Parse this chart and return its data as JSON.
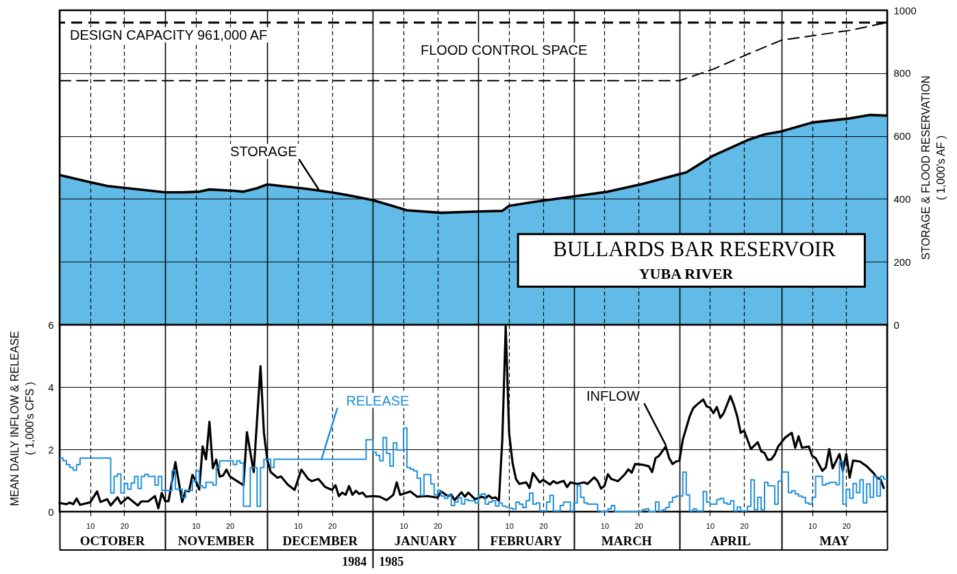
{
  "chart_data": [
    {
      "type": "line",
      "title": "BULLARDS BAR RESERVOIR",
      "subtitle": "YUBA RIVER",
      "ylabel": "STORAGE & FLOOD RESERVATION\n( 1,000's AF )",
      "x": [
        "1984-10-01",
        "1984-10-10",
        "1984-10-15",
        "1984-10-20",
        "1984-10-26",
        "1984-11-01",
        "1984-11-06",
        "1984-11-11",
        "1984-11-14",
        "1984-11-21",
        "1984-11-24",
        "1984-11-28",
        "1984-12-01",
        "1984-12-05",
        "1984-12-11",
        "1984-12-16",
        "1984-12-21",
        "1984-12-26",
        "1985-01-01",
        "1985-01-06",
        "1985-01-11",
        "1985-01-21",
        "1985-02-01",
        "1985-02-08",
        "1985-02-10",
        "1985-02-17",
        "1985-03-01",
        "1985-03-11",
        "1985-03-21",
        "1985-04-01",
        "1985-04-03",
        "1985-04-11",
        "1985-04-21",
        "1985-04-26",
        "1985-05-01",
        "1985-05-10",
        "1985-05-21",
        "1985-05-27",
        "1985-06-01"
      ],
      "series": [
        {
          "name": "STORAGE",
          "type": "area",
          "color": "#62bbe7",
          "values": [
            476,
            453,
            441,
            435,
            428,
            421,
            421,
            423,
            430,
            426,
            423,
            434,
            446,
            441,
            434,
            427,
            419,
            409,
            396,
            380,
            364,
            356,
            360,
            362,
            378,
            390,
            408,
            423,
            447,
            479,
            484,
            538,
            587,
            605,
            615,
            643,
            656,
            667,
            665
          ]
        },
        {
          "color": "#000000",
          "line_style": "dashed",
          "x": [
            "1984-10-01",
            "1985-04-01",
            "1985-04-11",
            "1985-04-21",
            "1985-05-01",
            "1985-05-10",
            "1985-05-21",
            "1985-06-01"
          ],
          "values": [
            776,
            776,
            813,
            860,
            905,
            919,
            936,
            961
          ]
        }
      ],
      "xlim": [
        "1984-10-01",
        "1985-06-01"
      ],
      "xticks": [
        {
          "value": "1984-10-01",
          "label": null
        },
        {
          "value": "1984-10-10",
          "label": null
        },
        {
          "value": "1984-10-20",
          "label": null
        },
        {
          "value": "1984-11-01",
          "label": null
        },
        {
          "value": "1984-11-10",
          "label": null
        },
        {
          "value": "1984-11-20",
          "label": null
        },
        {
          "value": "1984-12-01",
          "label": null
        },
        {
          "value": "1984-12-10",
          "label": null
        },
        {
          "value": "1984-12-20",
          "label": null
        },
        {
          "value": "1985-01-01",
          "label": null
        },
        {
          "value": "1985-01-10",
          "label": null
        },
        {
          "value": "1985-01-20",
          "label": null
        },
        {
          "value": "1985-02-01",
          "label": null
        },
        {
          "value": "1985-02-10",
          "label": null
        },
        {
          "value": "1985-02-20",
          "label": null
        },
        {
          "value": "1985-03-01",
          "label": null
        },
        {
          "value": "1985-03-10",
          "label": null
        },
        {
          "value": "1985-03-20",
          "label": null
        },
        {
          "value": "1985-04-01",
          "label": null
        },
        {
          "value": "1985-04-10",
          "label": null
        },
        {
          "value": "1985-04-20",
          "label": null
        },
        {
          "value": "1985-05-01",
          "label": null
        },
        {
          "value": "1985-05-10",
          "label": null
        },
        {
          "value": "1985-05-20",
          "label": null
        },
        {
          "value": "1985-06-01",
          "label": null
        }
      ],
      "ylim": [
        0,
        1000
      ],
      "yticks": [
        0,
        200,
        400,
        600,
        800,
        1000
      ],
      "grid": true,
      "tick_labels": "y",
      "ref_lines": [
        {
          "axis": "y",
          "value": 961,
          "label": "DESIGN CAPACITY 961,000 AF",
          "color": "#000000",
          "line_style": "dashed"
        }
      ],
      "annotations": [
        "FLOOD CONTROL SPACE"
      ]
    },
    {
      "type": "line",
      "ylabel": "MEAN DAILY INFLOW & RELEASE\n( 1,000's CFS )",
      "series": [
        {
          "name": "INFLOW",
          "color": "#000000",
          "x": [
            "1984-10-01",
            "1984-10-03",
            "1984-10-04",
            "1984-10-05",
            "1984-10-06",
            "1984-10-07",
            "1984-10-10",
            "1984-10-12",
            "1984-10-13",
            "1984-10-15",
            "1984-10-16",
            "1984-10-18",
            "1984-10-19",
            "1984-10-21",
            "1984-10-24",
            "1984-10-25",
            "1984-10-27",
            "1984-10-29",
            "1984-10-30",
            "1984-10-31",
            "1984-11-01",
            "1984-11-02",
            "1984-11-04",
            "1984-11-06",
            "1984-11-07",
            "1984-11-08",
            "1984-11-09",
            "1984-11-10",
            "1984-11-11",
            "1984-11-12",
            "1984-11-13",
            "1984-11-14",
            "1984-11-15",
            "1984-11-16",
            "1984-11-17",
            "1984-11-18",
            "1984-11-19",
            "1984-11-20",
            "1984-11-24",
            "1984-11-25",
            "1984-11-27",
            "1984-11-29",
            "1984-11-30",
            "1984-12-01",
            "1984-12-02",
            "1984-12-04",
            "1984-12-05",
            "1984-12-07",
            "1984-12-09",
            "1984-12-11",
            "1984-12-13",
            "1984-12-14",
            "1984-12-16",
            "1984-12-18",
            "1984-12-20",
            "1984-12-21",
            "1984-12-22",
            "1984-12-23",
            "1984-12-24",
            "1984-12-25",
            "1984-12-26",
            "1984-12-27",
            "1984-12-28",
            "1984-12-29",
            "1984-12-30",
            "1985-01-01",
            "1985-01-03",
            "1985-01-05",
            "1985-01-07",
            "1985-01-08",
            "1985-01-09",
            "1985-01-12",
            "1985-01-14",
            "1985-01-17",
            "1985-01-20",
            "1985-01-21",
            "1985-01-23",
            "1985-01-24",
            "1985-01-25",
            "1985-01-27",
            "1985-01-28",
            "1985-01-29",
            "1985-01-31",
            "1985-02-02",
            "1985-02-03",
            "1985-02-04",
            "1985-02-05",
            "1985-02-06",
            "1985-02-07",
            "1985-02-08",
            "1985-02-09",
            "1985-02-10",
            "1985-02-11",
            "1985-02-12",
            "1985-02-13",
            "1985-02-15",
            "1985-02-16",
            "1985-02-17",
            "1985-02-19",
            "1985-02-20",
            "1985-02-22",
            "1985-02-23",
            "1985-02-24",
            "1985-02-26",
            "1985-02-27",
            "1985-02-28",
            "1985-03-02",
            "1985-03-04",
            "1985-03-05",
            "1985-03-07",
            "1985-03-08",
            "1985-03-09",
            "1985-03-10",
            "1985-03-11",
            "1985-03-12",
            "1985-03-14",
            "1985-03-16",
            "1985-03-17",
            "1985-03-18",
            "1985-03-19",
            "1985-03-21",
            "1985-03-23",
            "1985-03-24",
            "1985-03-25",
            "1985-03-26",
            "1985-03-27",
            "1985-03-28",
            "1985-03-29",
            "1985-03-30",
            "1985-03-31",
            "1985-04-01",
            "1985-04-02",
            "1985-04-04",
            "1985-04-05",
            "1985-04-06",
            "1985-04-08",
            "1985-04-09",
            "1985-04-10",
            "1985-04-11",
            "1985-04-12",
            "1985-04-13",
            "1985-04-14",
            "1985-04-16",
            "1985-04-17",
            "1985-04-18",
            "1985-04-19",
            "1985-04-20",
            "1985-04-22",
            "1985-04-24",
            "1985-04-25",
            "1985-04-26",
            "1985-04-27",
            "1985-04-28",
            "1985-04-29",
            "1985-04-30",
            "1985-05-01",
            "1985-05-02",
            "1985-05-04",
            "1985-05-05",
            "1985-05-06",
            "1985-05-07",
            "1985-05-09",
            "1985-05-10",
            "1985-05-11",
            "1985-05-13",
            "1985-05-14",
            "1985-05-15",
            "1985-05-16",
            "1985-05-18",
            "1985-05-19",
            "1985-05-20",
            "1985-05-21",
            "1985-05-22",
            "1985-05-24",
            "1985-05-26",
            "1985-05-28",
            "1985-05-29",
            "1985-05-30",
            "1985-05-31"
          ],
          "values": [
            0.28,
            0.24,
            0.29,
            0.24,
            0.42,
            0.22,
            0.3,
            0.65,
            0.31,
            0.4,
            0.2,
            0.46,
            0.26,
            0.46,
            0.2,
            0.33,
            0.33,
            0.5,
            0.11,
            0.6,
            0.34,
            0.34,
            1.59,
            0.31,
            0.68,
            0.65,
            1.18,
            0.98,
            0.71,
            2.09,
            1.68,
            2.88,
            1.39,
            1.67,
            1.13,
            1.16,
            1.35,
            1.13,
            0.85,
            2.55,
            1.27,
            4.67,
            2.53,
            1.65,
            1.27,
            1.09,
            1.13,
            0.87,
            0.7,
            1.35,
            1.05,
            0.98,
            1.05,
            0.79,
            0.7,
            0.85,
            0.5,
            0.61,
            0.54,
            0.82,
            0.54,
            0.67,
            0.57,
            0.61,
            0.48,
            0.5,
            0.48,
            0.37,
            0.54,
            0.94,
            0.54,
            0.65,
            0.48,
            0.5,
            0.45,
            0.65,
            0.5,
            0.55,
            0.37,
            0.62,
            0.48,
            0.61,
            0.4,
            0.48,
            0.43,
            0.52,
            0.43,
            0.46,
            0.35,
            2.31,
            5.95,
            2.53,
            1.57,
            1.05,
            0.89,
            0.94,
            0.76,
            1.24,
            0.94,
            1.02,
            0.87,
            0.98,
            0.91,
            0.99,
            0.79,
            0.94,
            0.89,
            0.94,
            0.89,
            1.1,
            0.98,
            0.74,
            0.83,
            1.2,
            1.05,
            0.98,
            1.2,
            1.36,
            1.25,
            1.53,
            1.51,
            1.46,
            1.27,
            1.72,
            1.79,
            1.94,
            2.09,
            1.72,
            1.53,
            1.61,
            1.64,
            2.31,
            3.05,
            3.31,
            3.42,
            3.6,
            3.38,
            3.34,
            3.16,
            3.36,
            3.01,
            3.16,
            3.71,
            3.42,
            3.05,
            2.53,
            2.6,
            2.01,
            2.23,
            1.94,
            1.88,
            1.66,
            1.68,
            1.83,
            2.09,
            2.23,
            2.37,
            2.53,
            2.05,
            2.42,
            2.05,
            2.09,
            1.79,
            1.72,
            1.31,
            1.42,
            2.01,
            1.39,
            1.85,
            1.31,
            1.85,
            1.09,
            1.64,
            1.61,
            1.46,
            1.24,
            1.09,
            1.05,
            0.76
          ]
        },
        {
          "name": "RELEASE",
          "type": "step",
          "color": "#1e8fdc",
          "x": [
            "1984-10-01",
            "1984-10-02",
            "1984-10-03",
            "1984-10-04",
            "1984-10-05",
            "1984-10-06",
            "1984-10-07",
            "1984-10-16",
            "1984-10-17",
            "1984-10-18",
            "1984-10-19",
            "1984-10-20",
            "1984-10-21",
            "1984-10-22",
            "1984-10-23",
            "1984-10-24",
            "1984-10-25",
            "1984-10-26",
            "1984-10-27",
            "1984-10-29",
            "1984-10-30",
            "1984-10-31",
            "1984-11-03",
            "1984-11-04",
            "1984-11-06",
            "1984-11-07",
            "1984-11-09",
            "1984-11-10",
            "1984-11-11",
            "1984-11-12",
            "1984-11-13",
            "1984-11-15",
            "1984-11-16",
            "1984-11-17",
            "1984-11-21",
            "1984-11-22",
            "1984-11-23",
            "1984-11-24",
            "1984-11-26",
            "1984-11-28",
            "1984-11-29",
            "1984-11-30",
            "1984-12-02",
            "1984-12-03",
            "1984-12-30",
            "1985-01-01",
            "1985-01-02",
            "1985-01-03",
            "1985-01-04",
            "1985-01-05",
            "1985-01-06",
            "1985-01-07",
            "1985-01-08",
            "1985-01-10",
            "1985-01-11",
            "1985-01-12",
            "1985-01-13",
            "1985-01-14",
            "1985-01-15",
            "1985-01-16",
            "1985-01-18",
            "1985-01-19",
            "1985-01-20",
            "1985-01-21",
            "1985-01-22",
            "1985-01-23",
            "1985-01-24",
            "1985-01-25",
            "1985-01-26",
            "1985-01-27",
            "1985-01-28",
            "1985-01-29",
            "1985-01-31",
            "1985-02-01",
            "1985-02-02",
            "1985-02-03",
            "1985-02-04",
            "1985-02-05",
            "1985-02-06",
            "1985-02-07",
            "1985-02-08",
            "1985-02-09",
            "1985-02-10",
            "1985-02-11",
            "1985-02-12",
            "1985-02-13",
            "1985-02-14",
            "1985-02-15",
            "1985-02-16",
            "1985-02-17",
            "1985-02-18",
            "1985-02-19",
            "1985-02-21",
            "1985-02-22",
            "1985-02-23",
            "1985-02-25",
            "1985-02-26",
            "1985-02-28",
            "1985-03-01",
            "1985-03-02",
            "1985-03-03",
            "1985-03-04",
            "1985-03-05",
            "1985-03-08",
            "1985-03-09",
            "1985-03-11",
            "1985-03-12",
            "1985-03-13",
            "1985-03-21",
            "1985-03-22",
            "1985-03-23",
            "1985-03-25",
            "1985-03-26",
            "1985-03-27",
            "1985-03-28",
            "1985-03-29",
            "1985-03-30",
            "1985-03-31",
            "1985-04-02",
            "1985-04-03",
            "1985-04-04",
            "1985-04-05",
            "1985-04-06",
            "1985-04-08",
            "1985-04-09",
            "1985-04-10",
            "1985-04-12",
            "1985-04-13",
            "1985-04-14",
            "1985-04-15",
            "1985-04-16",
            "1985-04-17",
            "1985-04-18",
            "1985-04-19",
            "1985-04-21",
            "1985-04-22",
            "1985-04-23",
            "1985-04-24",
            "1985-04-25",
            "1985-04-26",
            "1985-04-27",
            "1985-04-29",
            "1985-04-30",
            "1985-05-01",
            "1985-05-03",
            "1985-05-04",
            "1985-05-05",
            "1985-05-06",
            "1985-05-07",
            "1985-05-08",
            "1985-05-09",
            "1985-05-10",
            "1985-05-11",
            "1985-05-13",
            "1985-05-14",
            "1985-05-15",
            "1985-05-17",
            "1985-05-18",
            "1985-05-19",
            "1985-05-20",
            "1985-05-21",
            "1985-05-22",
            "1985-05-23",
            "1985-05-24",
            "1985-05-25",
            "1985-05-26",
            "1985-05-27",
            "1985-05-28",
            "1985-05-29",
            "1985-05-30",
            "1985-05-31",
            "1985-06-01"
          ],
          "values": [
            1.72,
            1.64,
            1.51,
            1.42,
            1.33,
            1.51,
            1.72,
            0.6,
            1.13,
            1.21,
            0.6,
            0.9,
            0.72,
            0.92,
            1.13,
            0.74,
            1.13,
            1.2,
            1.13,
            0.85,
            1.13,
            0.68,
            1.31,
            0.72,
            0.45,
            0.68,
            0.98,
            1.31,
            0.83,
            0.77,
            0.94,
            0.85,
            1.42,
            1.63,
            1.51,
            1.63,
            1.56,
            0.17,
            1.41,
            0.17,
            1.42,
            1.68,
            1.42,
            1.68,
            2.31,
            1.9,
            1.81,
            1.63,
            2.38,
            1.87,
            1.46,
            2.21,
            1.98,
            2.68,
            1.42,
            1.36,
            1.31,
            1.07,
            0.52,
            1.19,
            0.89,
            0.54,
            0.68,
            0.5,
            0.43,
            0.54,
            0.2,
            0.31,
            0.45,
            0.25,
            0.39,
            0.35,
            0.28,
            0.54,
            0.57,
            0.24,
            0.31,
            0.35,
            0.18,
            0.28,
            0.18,
            0.15,
            0.11,
            0.08,
            0.31,
            0.24,
            0.13,
            0.35,
            0.6,
            0.24,
            0.28,
            0.02,
            0.31,
            0.52,
            0.02,
            0.2,
            0.31,
            0.02,
            0.28,
            0.83,
            0.46,
            0.28,
            0.24,
            0.02,
            0,
            0.09,
            0.2,
            0,
            0.06,
            0.09,
            0,
            0.31,
            0.02,
            0.06,
            0.13,
            0.31,
            0.46,
            0.5,
            1.27,
            0.54,
            0.02,
            0.09,
            0.02,
            0.65,
            0.31,
            0.24,
            0.39,
            0.43,
            0.28,
            0.24,
            0.35,
            0.02,
            0.15,
            0.02,
            0.17,
            1.02,
            0.06,
            0.46,
            0.06,
            0.94,
            0.83,
            0.24,
            0.98,
            1.27,
            0.61,
            0.67,
            0.57,
            0.5,
            0.46,
            0.28,
            0.24,
            0.46,
            1.13,
            0.85,
            0.9,
            0.94,
            0.87,
            1.61,
            0.24,
            0.72,
            0.43,
            0.9,
            0.61,
            1.02,
            0.28,
            0.89,
            0.46,
            1.14,
            0.5,
            1.13,
            1.05,
            1.05
          ]
        }
      ],
      "xlim": [
        "1984-10-01",
        "1985-06-01"
      ],
      "xticks": [
        {
          "value": "1984-10-01",
          "label": null
        },
        {
          "value": "1984-10-10",
          "label": "10"
        },
        {
          "value": "1984-10-20",
          "label": "20"
        },
        {
          "value": "1984-11-01",
          "label": null
        },
        {
          "value": "1984-11-10",
          "label": "10"
        },
        {
          "value": "1984-11-20",
          "label": "20"
        },
        {
          "value": "1984-12-01",
          "label": null
        },
        {
          "value": "1984-12-10",
          "label": "10"
        },
        {
          "value": "1984-12-20",
          "label": "20"
        },
        {
          "value": "1985-01-01",
          "label": null
        },
        {
          "value": "1985-01-10",
          "label": "10"
        },
        {
          "value": "1985-01-20",
          "label": "20"
        },
        {
          "value": "1985-02-01",
          "label": null
        },
        {
          "value": "1985-02-10",
          "label": "10"
        },
        {
          "value": "1985-02-20",
          "label": "20"
        },
        {
          "value": "1985-03-01",
          "label": null
        },
        {
          "value": "1985-03-10",
          "label": "10"
        },
        {
          "value": "1985-03-20",
          "label": "20"
        },
        {
          "value": "1985-04-01",
          "label": null
        },
        {
          "value": "1985-04-10",
          "label": "10"
        },
        {
          "value": "1985-04-20",
          "label": "20"
        },
        {
          "value": "1985-05-01",
          "label": null
        },
        {
          "value": "1985-05-10",
          "label": "10"
        },
        {
          "value": "1985-05-20",
          "label": "20"
        },
        {
          "value": "1985-06-01",
          "label": null
        }
      ],
      "ylim": [
        0,
        6
      ],
      "yticks": [
        0,
        2,
        4,
        6
      ],
      "grid": true,
      "annotations": [
        "OCTOBER",
        "NOVEMBER",
        "DECEMBER",
        "JANUARY",
        "FEBRUARY",
        "MARCH",
        "APRIL",
        "MAY",
        "1984",
        "1985"
      ]
    }
  ]
}
